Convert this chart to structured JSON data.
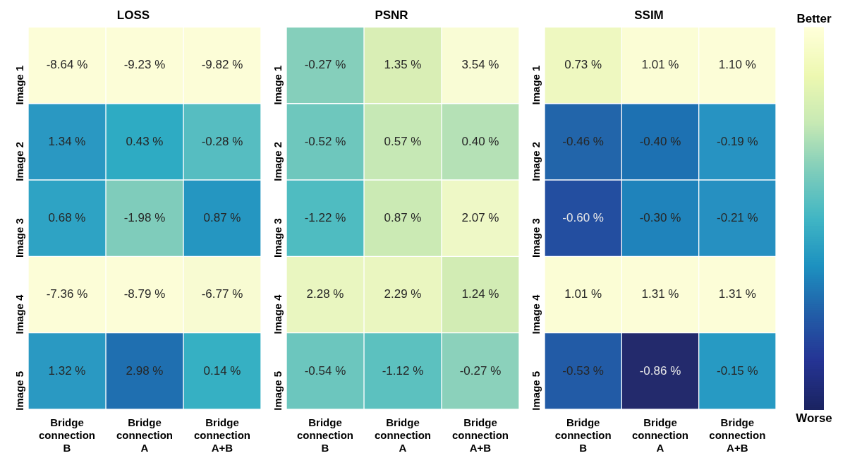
{
  "chart_data": [
    {
      "type": "heatmap",
      "title": "LOSS",
      "categories": [
        "Bridge connection B",
        "Bridge connection A",
        "Bridge connection A+B"
      ],
      "y_categories": [
        "Image 1",
        "Image 2",
        "Image 3",
        "Image 4",
        "Image 5"
      ],
      "cells": [
        [
          -8.64,
          -9.23,
          -9.82
        ],
        [
          1.34,
          0.43,
          -0.28
        ],
        [
          0.68,
          -1.98,
          0.87
        ],
        [
          -7.36,
          -8.79,
          -6.77
        ],
        [
          1.32,
          2.98,
          0.14
        ]
      ],
      "cell_labels": [
        [
          "-8.64 %",
          "-9.23 %",
          "-9.82 %"
        ],
        [
          "1.34 %",
          "0.43 %",
          "-0.28 %"
        ],
        [
          "0.68 %",
          "-1.98 %",
          "0.87 %"
        ],
        [
          "-7.36 %",
          "-8.79 %",
          "-6.77 %"
        ],
        [
          "1.32 %",
          "2.98 %",
          "0.14 %"
        ]
      ],
      "colors": [
        [
          "#fcfdd7",
          "#fcfdd7",
          "#fcfdd7"
        ],
        [
          "#2a98c2",
          "#2eabc3",
          "#56bdc1"
        ],
        [
          "#2ea3c4",
          "#7fccbb",
          "#2596c1"
        ],
        [
          "#fcfdd7",
          "#fcfdd7",
          "#f8fbd2"
        ],
        [
          "#2a99c2",
          "#1f6fb0",
          "#36b0c3"
        ]
      ]
    },
    {
      "type": "heatmap",
      "title": "PSNR",
      "categories": [
        "Bridge connection B",
        "Bridge connection A",
        "Bridge connection A+B"
      ],
      "y_categories": [
        "Image 1",
        "Image 2",
        "Image 3",
        "Image 4",
        "Image 5"
      ],
      "cells": [
        [
          -0.27,
          1.35,
          3.54
        ],
        [
          -0.52,
          0.57,
          0.4
        ],
        [
          -1.22,
          0.87,
          2.07
        ],
        [
          2.28,
          2.29,
          1.24
        ],
        [
          -0.54,
          -1.12,
          -0.27
        ]
      ],
      "cell_labels": [
        [
          "-0.27 %",
          "1.35 %",
          "3.54 %"
        ],
        [
          "-0.52 %",
          "0.57 %",
          "0.40 %"
        ],
        [
          "-1.22 %",
          "0.87 %",
          "2.07 %"
        ],
        [
          "2.28 %",
          "2.29 %",
          "1.24 %"
        ],
        [
          "-0.54 %",
          "-1.12 %",
          "-0.27 %"
        ]
      ],
      "colors": [
        [
          "#85cfbb",
          "#d9eeb5",
          "#f9fcd5"
        ],
        [
          "#6ec7bd",
          "#c6e8b5",
          "#b5e1b6"
        ],
        [
          "#4fbcc1",
          "#cbeab4",
          "#eef8c6"
        ],
        [
          "#e9f6c0",
          "#eaf6c0",
          "#d2ecb4"
        ],
        [
          "#6cc6be",
          "#5cc1bf",
          "#8bd1bb"
        ]
      ]
    },
    {
      "type": "heatmap",
      "title": "SSIM",
      "categories": [
        "Bridge connection B",
        "Bridge connection A",
        "Bridge connection A+B"
      ],
      "y_categories": [
        "Image 1",
        "Image 2",
        "Image 3",
        "Image 4",
        "Image 5"
      ],
      "cells": [
        [
          0.73,
          1.01,
          1.1
        ],
        [
          -0.46,
          -0.4,
          -0.19
        ],
        [
          -0.6,
          -0.3,
          -0.21
        ],
        [
          1.01,
          1.31,
          1.31
        ],
        [
          -0.53,
          -0.86,
          -0.15
        ]
      ],
      "cell_labels": [
        [
          "0.73 %",
          "1.01 %",
          "1.10 %"
        ],
        [
          "-0.46 %",
          "-0.40 %",
          "-0.19 %"
        ],
        [
          "-0.60 %",
          "-0.30 %",
          "-0.21 %"
        ],
        [
          "1.01 %",
          "1.31 %",
          "1.31 %"
        ],
        [
          "-0.53 %",
          "-0.86 %",
          "-0.15 %"
        ]
      ],
      "colors": [
        [
          "#eef8c0",
          "#fbfdd5",
          "#fcfdd7"
        ],
        [
          "#2265aa",
          "#1d71b2",
          "#2793c2"
        ],
        [
          "#234ea0",
          "#1f83bb",
          "#2690c1"
        ],
        [
          "#fbfdd5",
          "#fcfdd7",
          "#fcfdd7"
        ],
        [
          "#225ba6",
          "#232a6c",
          "#279ac3"
        ]
      ],
      "annotations": [
        "Better",
        "Worse"
      ]
    }
  ]
}
